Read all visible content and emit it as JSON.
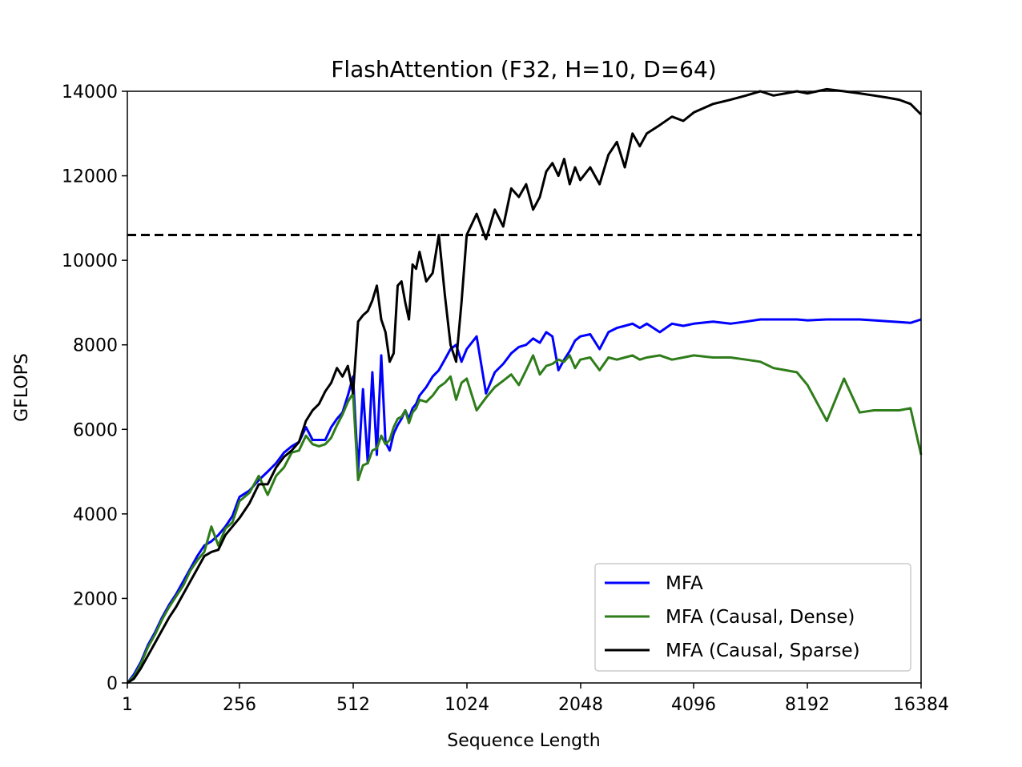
{
  "chart_data": {
    "type": "line",
    "title": "FlashAttention (F32, H=10, D=64)",
    "xlabel": "Sequence Length",
    "ylabel": "GFLOPS",
    "x_tick_labels": [
      "1",
      "256",
      "512",
      "1024",
      "2048",
      "4096",
      "8192",
      "16384"
    ],
    "y_ticks": [
      0,
      2000,
      4000,
      6000,
      8000,
      10000,
      12000,
      14000
    ],
    "ylim": [
      0,
      14000
    ],
    "grid": false,
    "legend_position": "lower-right",
    "reference_line": {
      "y": 10600,
      "style": "dashed",
      "color": "#000000"
    },
    "series": [
      {
        "name": "MFA",
        "color": "#0000ff",
        "x": [
          1,
          16,
          32,
          48,
          64,
          80,
          96,
          112,
          128,
          144,
          160,
          176,
          192,
          208,
          224,
          240,
          256,
          272,
          288,
          304,
          320,
          336,
          352,
          368,
          384,
          400,
          416,
          432,
          448,
          464,
          480,
          496,
          512,
          528,
          544,
          560,
          576,
          592,
          608,
          624,
          640,
          656,
          672,
          688,
          704,
          720,
          736,
          752,
          768,
          800,
          832,
          864,
          896,
          928,
          960,
          992,
          1024,
          1088,
          1152,
          1216,
          1280,
          1344,
          1408,
          1472,
          1536,
          1600,
          1664,
          1728,
          1792,
          1856,
          1920,
          1984,
          2048,
          2176,
          2304,
          2432,
          2560,
          2688,
          2816,
          2944,
          3072,
          3328,
          3584,
          3840,
          4096,
          4608,
          5120,
          5632,
          6144,
          6656,
          7168,
          7680,
          8192,
          9216,
          10240,
          11264,
          12288,
          13312,
          14336,
          15360,
          16384
        ],
        "values": [
          0,
          200,
          500,
          900,
          1200,
          1550,
          1850,
          2100,
          2400,
          2700,
          3000,
          3250,
          3350,
          3500,
          3700,
          3950,
          4400,
          4550,
          4800,
          5000,
          5200,
          5450,
          5600,
          5700,
          6050,
          5750,
          5750,
          5750,
          6050,
          6250,
          6400,
          6800,
          7250,
          5000,
          6950,
          5200,
          7350,
          5400,
          7750,
          5700,
          5500,
          5900,
          6100,
          6250,
          6450,
          6250,
          6500,
          6600,
          6800,
          7000,
          7250,
          7400,
          7650,
          7900,
          8000,
          7600,
          7900,
          8200,
          6850,
          7350,
          7550,
          7800,
          7950,
          8000,
          8150,
          8050,
          8300,
          8200,
          7400,
          7650,
          7850,
          8100,
          8200,
          8250,
          7900,
          8300,
          8400,
          8450,
          8500,
          8400,
          8500,
          8300,
          8500,
          8450,
          8500,
          8550,
          8500,
          8550,
          8600,
          8600,
          8600,
          8600,
          8580,
          8600,
          8600,
          8600,
          8580,
          8560,
          8540,
          8520,
          8600
        ]
      },
      {
        "name": "MFA (Causal, Dense)",
        "color": "#2e7d1a",
        "x": [
          1,
          16,
          32,
          48,
          64,
          80,
          96,
          112,
          128,
          144,
          160,
          176,
          192,
          208,
          224,
          240,
          256,
          272,
          288,
          304,
          320,
          336,
          352,
          368,
          384,
          400,
          416,
          432,
          448,
          464,
          480,
          496,
          512,
          528,
          544,
          560,
          576,
          592,
          608,
          624,
          640,
          656,
          672,
          688,
          704,
          720,
          736,
          752,
          768,
          800,
          832,
          864,
          896,
          928,
          960,
          992,
          1024,
          1088,
          1152,
          1216,
          1280,
          1344,
          1408,
          1472,
          1536,
          1600,
          1664,
          1728,
          1792,
          1856,
          1920,
          1984,
          2048,
          2176,
          2304,
          2432,
          2560,
          2688,
          2816,
          2944,
          3072,
          3328,
          3584,
          3840,
          4096,
          4608,
          5120,
          5632,
          6144,
          6656,
          7168,
          7680,
          8192,
          9216,
          10240,
          11264,
          12288,
          13312,
          14336,
          15360,
          16384
        ],
        "values": [
          0,
          150,
          450,
          850,
          1150,
          1500,
          1800,
          2050,
          2300,
          2650,
          2900,
          3100,
          3700,
          3250,
          3650,
          3800,
          4300,
          4500,
          4900,
          4450,
          4900,
          5100,
          5450,
          5500,
          5850,
          5650,
          5600,
          5650,
          5800,
          6100,
          6350,
          6650,
          6850,
          4800,
          5150,
          5200,
          5500,
          5550,
          5850,
          5650,
          5750,
          6050,
          6250,
          6300,
          6450,
          6150,
          6400,
          6500,
          6700,
          6650,
          6800,
          7000,
          7100,
          7250,
          6700,
          7100,
          7200,
          6450,
          6750,
          7000,
          7150,
          7300,
          7050,
          7400,
          7750,
          7300,
          7500,
          7550,
          7650,
          7600,
          7750,
          7450,
          7650,
          7700,
          7400,
          7700,
          7650,
          7700,
          7750,
          7650,
          7700,
          7750,
          7650,
          7700,
          7750,
          7700,
          7700,
          7650,
          7600,
          7450,
          7400,
          7350,
          7050,
          6200,
          7200,
          6400,
          6450,
          6450,
          6450,
          6500,
          5400
        ]
      },
      {
        "name": "MFA (Causal, Sparse)",
        "color": "#000000",
        "x": [
          1,
          16,
          32,
          48,
          64,
          80,
          96,
          112,
          128,
          144,
          160,
          176,
          192,
          208,
          224,
          240,
          256,
          272,
          288,
          304,
          320,
          336,
          352,
          368,
          384,
          400,
          416,
          432,
          448,
          464,
          480,
          496,
          512,
          528,
          544,
          560,
          576,
          592,
          608,
          624,
          640,
          656,
          672,
          688,
          704,
          720,
          736,
          752,
          768,
          800,
          832,
          864,
          896,
          928,
          960,
          992,
          1024,
          1088,
          1152,
          1216,
          1280,
          1344,
          1408,
          1472,
          1536,
          1600,
          1664,
          1728,
          1792,
          1856,
          1920,
          1984,
          2048,
          2176,
          2304,
          2432,
          2560,
          2688,
          2816,
          2944,
          3072,
          3328,
          3584,
          3840,
          4096,
          4608,
          5120,
          5632,
          6144,
          6656,
          7168,
          7680,
          8192,
          9216,
          10240,
          11264,
          12288,
          13312,
          14336,
          15360,
          16384
        ],
        "values": [
          0,
          100,
          350,
          650,
          950,
          1250,
          1550,
          1800,
          2100,
          2400,
          2700,
          3000,
          3100,
          3150,
          3500,
          3700,
          3900,
          4250,
          4700,
          4700,
          5100,
          5350,
          5500,
          5700,
          6200,
          6450,
          6600,
          6900,
          7100,
          7450,
          7250,
          7500,
          6850,
          8550,
          8700,
          8800,
          9050,
          9400,
          8600,
          8300,
          7600,
          7800,
          9400,
          9500,
          9000,
          8600,
          9900,
          9800,
          10200,
          9500,
          9700,
          10600,
          9200,
          8000,
          7600,
          9000,
          10600,
          11100,
          10500,
          11200,
          10800,
          11700,
          11500,
          11800,
          11200,
          11500,
          12100,
          12300,
          12000,
          12400,
          11800,
          12200,
          11900,
          12200,
          11800,
          12500,
          12800,
          12200,
          13000,
          12700,
          13000,
          13200,
          13400,
          13300,
          13500,
          13700,
          13800,
          13900,
          14000,
          13900,
          13950,
          14000,
          13950,
          14050,
          14000,
          13950,
          13900,
          13850,
          13800,
          13700,
          13450
        ]
      }
    ]
  }
}
